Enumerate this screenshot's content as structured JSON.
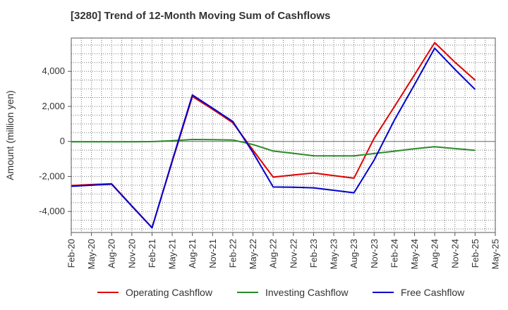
{
  "chart_data": {
    "type": "line",
    "title": "[3280]  Trend of 12-Month Moving Sum of Cashflows",
    "xlabel": "",
    "ylabel": "Amount (million yen)",
    "ylim": [
      -5200,
      5900
    ],
    "yticks": [
      -4000,
      -2000,
      0,
      2000,
      4000
    ],
    "ytick_labels": [
      "-4,000",
      "-2,000",
      "0",
      "2,000",
      "4,000"
    ],
    "categories": [
      "Feb-20",
      "May-20",
      "Aug-20",
      "Nov-20",
      "Feb-21",
      "May-21",
      "Aug-21",
      "Nov-21",
      "Feb-22",
      "May-22",
      "Aug-22",
      "Nov-22",
      "Feb-23",
      "May-23",
      "Aug-23",
      "Nov-23",
      "Feb-24",
      "May-24",
      "Aug-24",
      "Nov-24",
      "Feb-25",
      "May-25"
    ],
    "grid": true,
    "legend_position": "bottom",
    "series": [
      {
        "name": "Operating Cashflow",
        "color": "#e00000",
        "values": [
          -2520,
          -2460,
          -2420,
          -3680,
          -4920,
          -1150,
          2560,
          1840,
          1060,
          -500,
          -2040,
          -1920,
          -1800,
          -1950,
          -2100,
          180,
          1980,
          3800,
          5640,
          4520,
          3500,
          null
        ]
      },
      {
        "name": "Investing Cashflow",
        "color": "#2a8a2a",
        "values": [
          -20,
          -20,
          -20,
          -20,
          -10,
          40,
          110,
          100,
          80,
          -180,
          -550,
          -680,
          -820,
          -830,
          -830,
          -690,
          -560,
          -420,
          -300,
          -410,
          -510,
          null
        ]
      },
      {
        "name": "Free Cashflow",
        "color": "#0000cc",
        "values": [
          -2560,
          -2500,
          -2440,
          -3700,
          -4930,
          -1100,
          2650,
          1900,
          1140,
          -640,
          -2600,
          -2620,
          -2650,
          -2790,
          -2930,
          -1060,
          1210,
          3240,
          5320,
          4110,
          2970,
          null
        ]
      }
    ]
  }
}
